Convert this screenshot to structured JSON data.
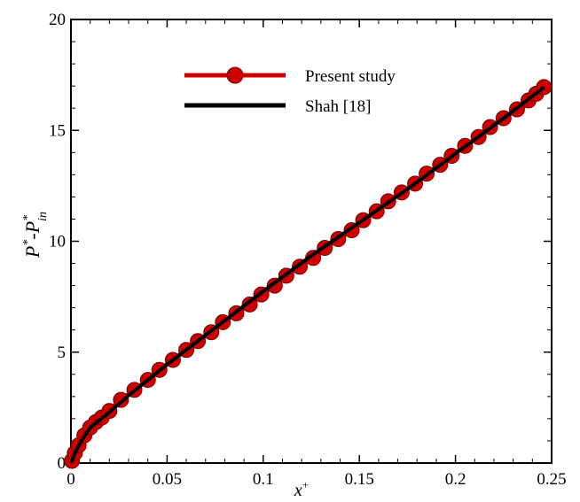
{
  "chart_data": {
    "type": "line",
    "xlabel": "x",
    "xlabel_sup": "+",
    "ylabel": {
      "base1": "P",
      "sup1": "*",
      "dash": "-",
      "base2": "P",
      "sup2": "*",
      "sub2": "in"
    },
    "xlim": [
      0,
      0.25
    ],
    "ylim": [
      0,
      20
    ],
    "x_ticks": [
      0,
      0.05,
      0.1,
      0.15,
      0.2,
      0.25
    ],
    "x_tick_labels": [
      "0",
      "0.05",
      "0.1",
      "0.15",
      "0.2",
      "0.25"
    ],
    "y_ticks": [
      0,
      5,
      10,
      15,
      20
    ],
    "y_tick_labels": [
      "0",
      "5",
      "10",
      "15",
      "20"
    ],
    "grid": false,
    "legend_position": "top-center",
    "series": [
      {
        "name": "Present study",
        "color": "#cc0000",
        "marker": "circle",
        "x": [
          0.0005,
          0.002,
          0.004,
          0.007,
          0.01,
          0.013,
          0.016,
          0.02,
          0.026,
          0.033,
          0.04,
          0.046,
          0.053,
          0.06,
          0.066,
          0.073,
          0.079,
          0.086,
          0.093,
          0.099,
          0.106,
          0.112,
          0.119,
          0.126,
          0.132,
          0.139,
          0.146,
          0.152,
          0.159,
          0.165,
          0.172,
          0.179,
          0.185,
          0.192,
          0.198,
          0.205,
          0.212,
          0.218,
          0.225,
          0.232,
          0.238,
          0.242,
          0.246
        ],
        "y": [
          0.1,
          0.45,
          0.8,
          1.25,
          1.6,
          1.85,
          2.05,
          2.35,
          2.85,
          3.3,
          3.75,
          4.2,
          4.65,
          5.1,
          5.5,
          5.9,
          6.35,
          6.75,
          7.15,
          7.6,
          8.0,
          8.45,
          8.85,
          9.25,
          9.7,
          10.1,
          10.5,
          10.95,
          11.35,
          11.8,
          12.2,
          12.6,
          13.05,
          13.45,
          13.85,
          14.3,
          14.7,
          15.15,
          15.55,
          15.95,
          16.35,
          16.65,
          16.95
        ]
      },
      {
        "name": "Shah [18]",
        "color": "#000000",
        "marker": "none",
        "x": [
          0,
          0.002,
          0.005,
          0.01,
          0.015,
          0.02,
          0.03,
          0.05,
          0.075,
          0.1,
          0.125,
          0.15,
          0.175,
          0.2,
          0.225,
          0.246
        ],
        "y": [
          0,
          0.45,
          0.95,
          1.6,
          1.95,
          2.3,
          3.05,
          4.45,
          6.1,
          7.75,
          9.35,
          10.85,
          12.35,
          13.95,
          15.55,
          16.95
        ]
      }
    ]
  }
}
